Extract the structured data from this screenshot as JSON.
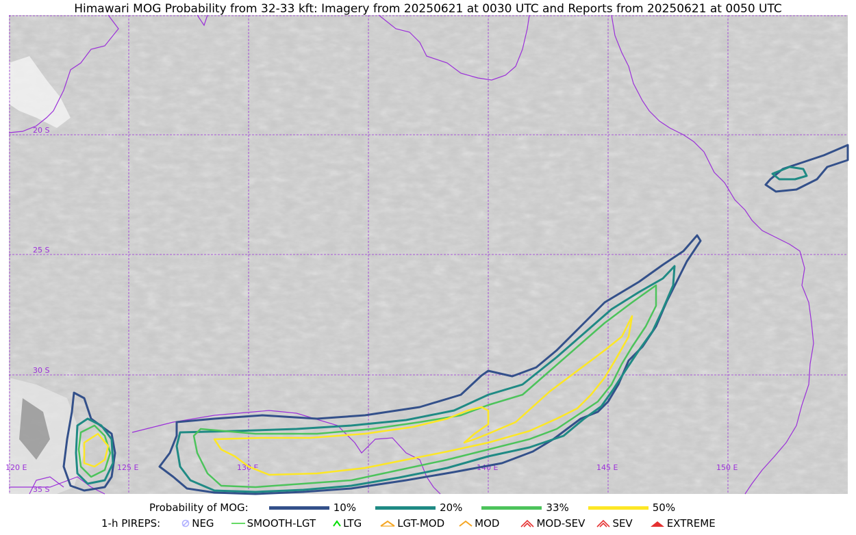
{
  "title": "Himawari MOG Probability from 32-33 kft: Imagery from 20250621 at 0030 UTC and Reports from 20250621 at 0050 UTC",
  "map": {
    "lat_labels": [
      "20 S",
      "25 S",
      "30 S",
      "35 S"
    ],
    "lon_labels": [
      "120 E",
      "125 E",
      "130 E",
      "140 E",
      "145 E",
      "150 E"
    ],
    "colors": {
      "gridline": "#9b30d9",
      "coastline": "#9b30d9",
      "background": "#c8c8c8"
    }
  },
  "legend": {
    "probability_title": "Probability of MOG:",
    "probability_levels": [
      {
        "label": "10%",
        "color": "#33508a"
      },
      {
        "label": "20%",
        "color": "#1f8a84"
      },
      {
        "label": "33%",
        "color": "#4cc35b"
      },
      {
        "label": "50%",
        "color": "#fde725"
      }
    ],
    "pireps_title": "1-h PIREPS:",
    "pireps": [
      {
        "label": "NEG",
        "icon": "neg-icon",
        "color": "#b0b0ff"
      },
      {
        "label": "SMOOTH-LGT",
        "icon": "smooth-lgt-icon",
        "color": "#32cd32"
      },
      {
        "label": "LTG",
        "icon": "ltg-icon",
        "color": "#00dd00"
      },
      {
        "label": "LGT-MOD",
        "icon": "lgt-mod-icon",
        "color": "#f5a623"
      },
      {
        "label": "MOD",
        "icon": "mod-icon",
        "color": "#f5a623"
      },
      {
        "label": "MOD-SEV",
        "icon": "mod-sev-icon",
        "color": "#e53030"
      },
      {
        "label": "SEV",
        "icon": "sev-icon",
        "color": "#e53030"
      },
      {
        "label": "EXTREME",
        "icon": "extreme-icon",
        "color": "#e53030"
      }
    ]
  }
}
